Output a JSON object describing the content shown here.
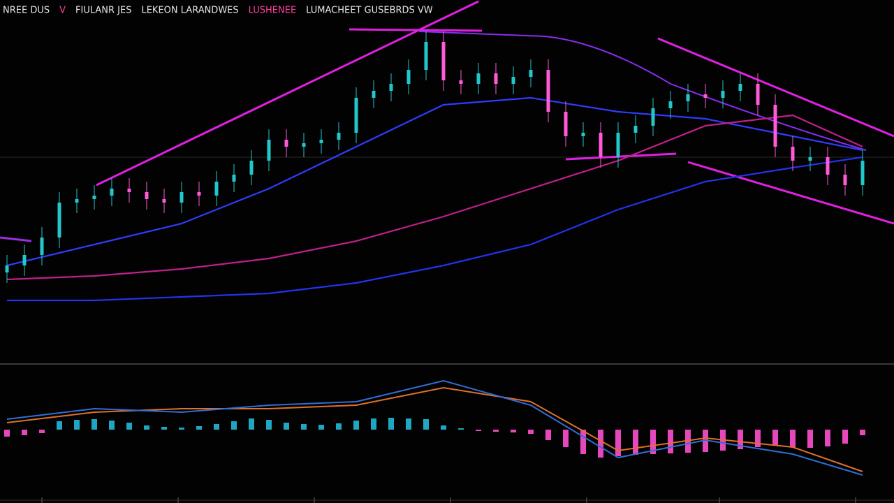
{
  "chart_data": [
    {
      "type": "candlestick",
      "header": [
        {
          "text": "NREE DUS",
          "color": "#e6e6e6"
        },
        {
          "text": "V",
          "color": "#ff3fa0"
        },
        {
          "text": "FIULANR JES",
          "color": "#e6e6e6"
        },
        {
          "text": "LEKEON LARANDWES",
          "color": "#e6e6e6"
        },
        {
          "text": "LUSHENEE",
          "color": "#ff3fa0"
        },
        {
          "text": "LUMACHEET GUSEBRDS VW",
          "color": "#e6e6e6"
        }
      ],
      "ylim": [
        0,
        104
      ],
      "up_color": "#22c7c9",
      "down_color": "#ff5ad8",
      "open": [
        26,
        28,
        31,
        36,
        46,
        47,
        48,
        50,
        49,
        47,
        46,
        49,
        48,
        52,
        54,
        58,
        64,
        62,
        63,
        64,
        66,
        76,
        78,
        80,
        84,
        92,
        81,
        80,
        83,
        80,
        82,
        84,
        72,
        65,
        66,
        59,
        66,
        68,
        73,
        75,
        77,
        76,
        78,
        80,
        74,
        62,
        58,
        59,
        54,
        51
      ],
      "high": [
        31,
        34,
        39,
        49,
        50,
        51,
        53,
        53,
        52,
        50,
        52,
        52,
        55,
        57,
        61,
        67,
        67,
        66,
        67,
        69,
        79,
        81,
        83,
        87,
        95,
        95,
        84,
        86,
        86,
        85,
        87,
        87,
        75,
        69,
        69,
        69,
        71,
        76,
        78,
        80,
        80,
        81,
        83,
        83,
        77,
        65,
        62,
        62,
        57,
        61
      ],
      "low": [
        23,
        25,
        28,
        33,
        43,
        44,
        45,
        46,
        44,
        43,
        43,
        45,
        45,
        49,
        51,
        55,
        59,
        59,
        60,
        61,
        63,
        73,
        75,
        77,
        81,
        78,
        77,
        77,
        77,
        77,
        79,
        69,
        62,
        62,
        56,
        56,
        63,
        65,
        70,
        72,
        73,
        73,
        75,
        71,
        59,
        55,
        55,
        51,
        48,
        48
      ],
      "close": [
        28,
        31,
        36,
        46,
        47,
        48,
        50,
        49,
        47,
        46,
        49,
        48,
        52,
        54,
        58,
        64,
        62,
        63,
        64,
        66,
        76,
        78,
        80,
        84,
        92,
        81,
        80,
        83,
        80,
        82,
        84,
        72,
        65,
        66,
        59,
        66,
        68,
        73,
        75,
        77,
        76,
        78,
        80,
        74,
        62,
        58,
        59,
        54,
        51,
        58
      ],
      "overlays": [
        {
          "color": "#2e3cff",
          "x": [
            0,
            5,
            10,
            15,
            20,
            25,
            30,
            35,
            40,
            45,
            49
          ],
          "values": [
            28,
            34,
            40,
            50,
            62,
            74,
            76,
            72,
            70,
            65,
            61
          ]
        },
        {
          "color": "#c0208a",
          "x": [
            0,
            5,
            10,
            15,
            20,
            25,
            30,
            35,
            40,
            45,
            49
          ],
          "values": [
            24,
            25,
            27,
            30,
            35,
            42,
            50,
            58,
            68,
            71,
            62
          ]
        },
        {
          "color": "#2233ee",
          "x": [
            0,
            5,
            10,
            15,
            20,
            25,
            30,
            35,
            40,
            45,
            49
          ],
          "values": [
            18,
            18,
            19,
            20,
            23,
            28,
            34,
            44,
            52,
            56,
            59
          ]
        }
      ]
    },
    {
      "type": "macd",
      "ylim": [
        -10.5,
        9.5
      ],
      "line_x": [
        0,
        5,
        10,
        15,
        20,
        25,
        30,
        35,
        40,
        45,
        49
      ],
      "macd": {
        "color": "#2f6fd6",
        "values": [
          1.5,
          3,
          2.5,
          3.5,
          4,
          7,
          3.5,
          -4,
          -1.5,
          -3.5,
          -6.5
        ]
      },
      "signal": {
        "color": "#e0702a",
        "values": [
          1,
          2.5,
          3,
          3,
          3.5,
          6,
          4,
          -3,
          -1.2,
          -2.5,
          -6
        ]
      },
      "histogram": {
        "up_color": "#22b8d8",
        "down_color": "#ff4fd0",
        "values": [
          -1,
          -0.8,
          -0.5,
          1.2,
          1.4,
          1.5,
          1.3,
          1.0,
          0.6,
          0.4,
          0.3,
          0.5,
          0.8,
          1.2,
          1.6,
          1.4,
          1.0,
          0.8,
          0.7,
          0.9,
          1.3,
          1.6,
          1.7,
          1.6,
          1.5,
          0.6,
          0.2,
          -0.2,
          -0.3,
          -0.4,
          -0.6,
          -1.5,
          -2.5,
          -3.5,
          -4,
          -3.8,
          -3.6,
          -3.5,
          -3.4,
          -3.3,
          -3.2,
          -3,
          -2.8,
          -2.5,
          -2.3,
          -2.5,
          -2.6,
          -2.4,
          -2,
          -0.8
        ]
      }
    }
  ]
}
